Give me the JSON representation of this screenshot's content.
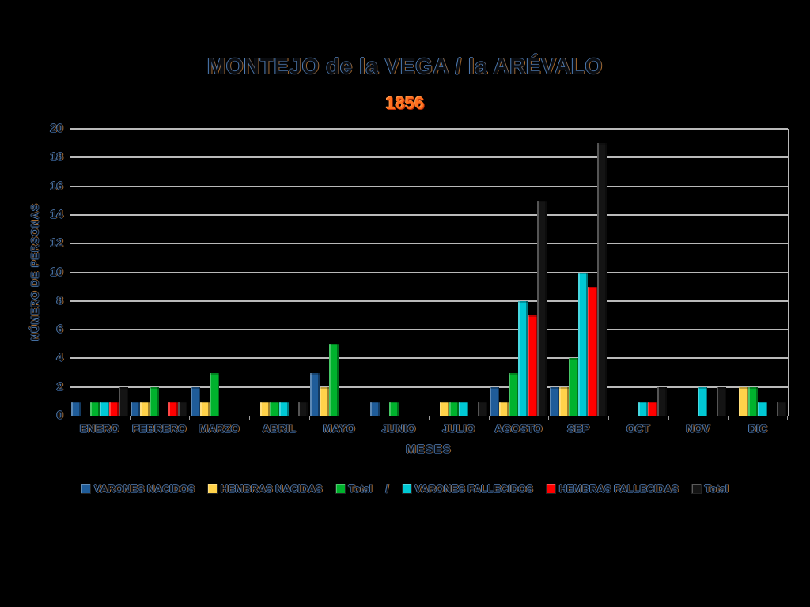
{
  "chart_data": {
    "type": "bar",
    "title": "MONTEJO de la VEGA / la ARÉVALO",
    "subtitle": "1856",
    "xlabel": "MESES",
    "ylabel": "NÚMERO DE PERSONAS",
    "ylim": [
      0,
      20
    ],
    "ytick_step": 2,
    "grid": true,
    "legend_position": "bottom",
    "legend_separator": {
      "text": "/",
      "after_index": 2
    },
    "categories": [
      "ENERO",
      "FEBRERO",
      "MARZO",
      "ABRIL",
      "MAYO",
      "JUNIO",
      "JULIO",
      "AGOSTO",
      "SEP",
      "OCT",
      "NOV",
      "DIC"
    ],
    "series": [
      {
        "name": "VARONES NACIDOS",
        "color": "#1f5c99",
        "values": [
          1,
          1,
          2,
          0,
          3,
          1,
          0,
          2,
          2,
          0,
          0,
          0
        ]
      },
      {
        "name": "HEMBRAS NACIDAS",
        "color": "#ffd24a",
        "values": [
          0,
          1,
          1,
          1,
          2,
          0,
          1,
          1,
          2,
          0,
          0,
          2
        ]
      },
      {
        "name": "Total",
        "color": "#00b22d",
        "values": [
          1,
          2,
          3,
          1,
          5,
          1,
          1,
          3,
          4,
          0,
          0,
          2
        ]
      },
      {
        "name": "VARONES FALLECIDOS",
        "color": "#00c8d4",
        "values": [
          1,
          0,
          0,
          1,
          0,
          0,
          1,
          8,
          10,
          1,
          2,
          1
        ]
      },
      {
        "name": "HEMBRAS FALLECIDAS",
        "color": "#ff0000",
        "values": [
          1,
          1,
          0,
          0,
          0,
          0,
          0,
          7,
          9,
          1,
          0,
          0
        ]
      },
      {
        "name": "Total",
        "color": "#141414",
        "values": [
          2,
          1,
          0,
          1,
          0,
          0,
          1,
          15,
          19,
          2,
          2,
          1
        ]
      }
    ]
  },
  "colors": {
    "background": "#000000",
    "gridline": "#b9b9b9",
    "subtitle_accent": "#ff6f1e",
    "text_fringe_blue": "#4d7cb4",
    "text_fringe_orange": "#a96b2d"
  }
}
